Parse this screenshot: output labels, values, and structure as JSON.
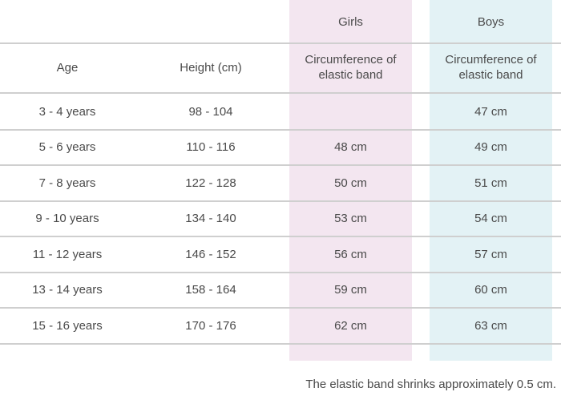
{
  "header": {
    "girls": "Girls",
    "boys": "Boys",
    "age": "Age",
    "height": "Height (cm)",
    "girls_sub": "Circumference of elastic band",
    "boys_sub": "Circumference of elastic band"
  },
  "rows": [
    {
      "age": "3 - 4 years",
      "height": "98 - 104",
      "girls": "",
      "boys": "47 cm"
    },
    {
      "age": "5 - 6 years",
      "height": "110 - 116",
      "girls": "48 cm",
      "boys": "49 cm"
    },
    {
      "age": "7 - 8 years",
      "height": "122 - 128",
      "girls": "50 cm",
      "boys": "51 cm"
    },
    {
      "age": "9 - 10 years",
      "height": "134 - 140",
      "girls": "53 cm",
      "boys": "54 cm"
    },
    {
      "age": "11 - 12 years",
      "height": "146 - 152",
      "girls": "56 cm",
      "boys": "57 cm"
    },
    {
      "age": "13 - 14 years",
      "height": "158 - 164",
      "girls": "59 cm",
      "boys": "60 cm"
    },
    {
      "age": "15 - 16 years",
      "height": "170 - 176",
      "girls": "62 cm",
      "boys": "63 cm"
    }
  ],
  "note": "The elastic band shrinks approximately 0.5 cm.",
  "colors": {
    "girls_band": "#f3e6f0",
    "boys_band": "#e3f2f5",
    "rule": "#cfcfcf",
    "text": "#4a4a4a"
  }
}
